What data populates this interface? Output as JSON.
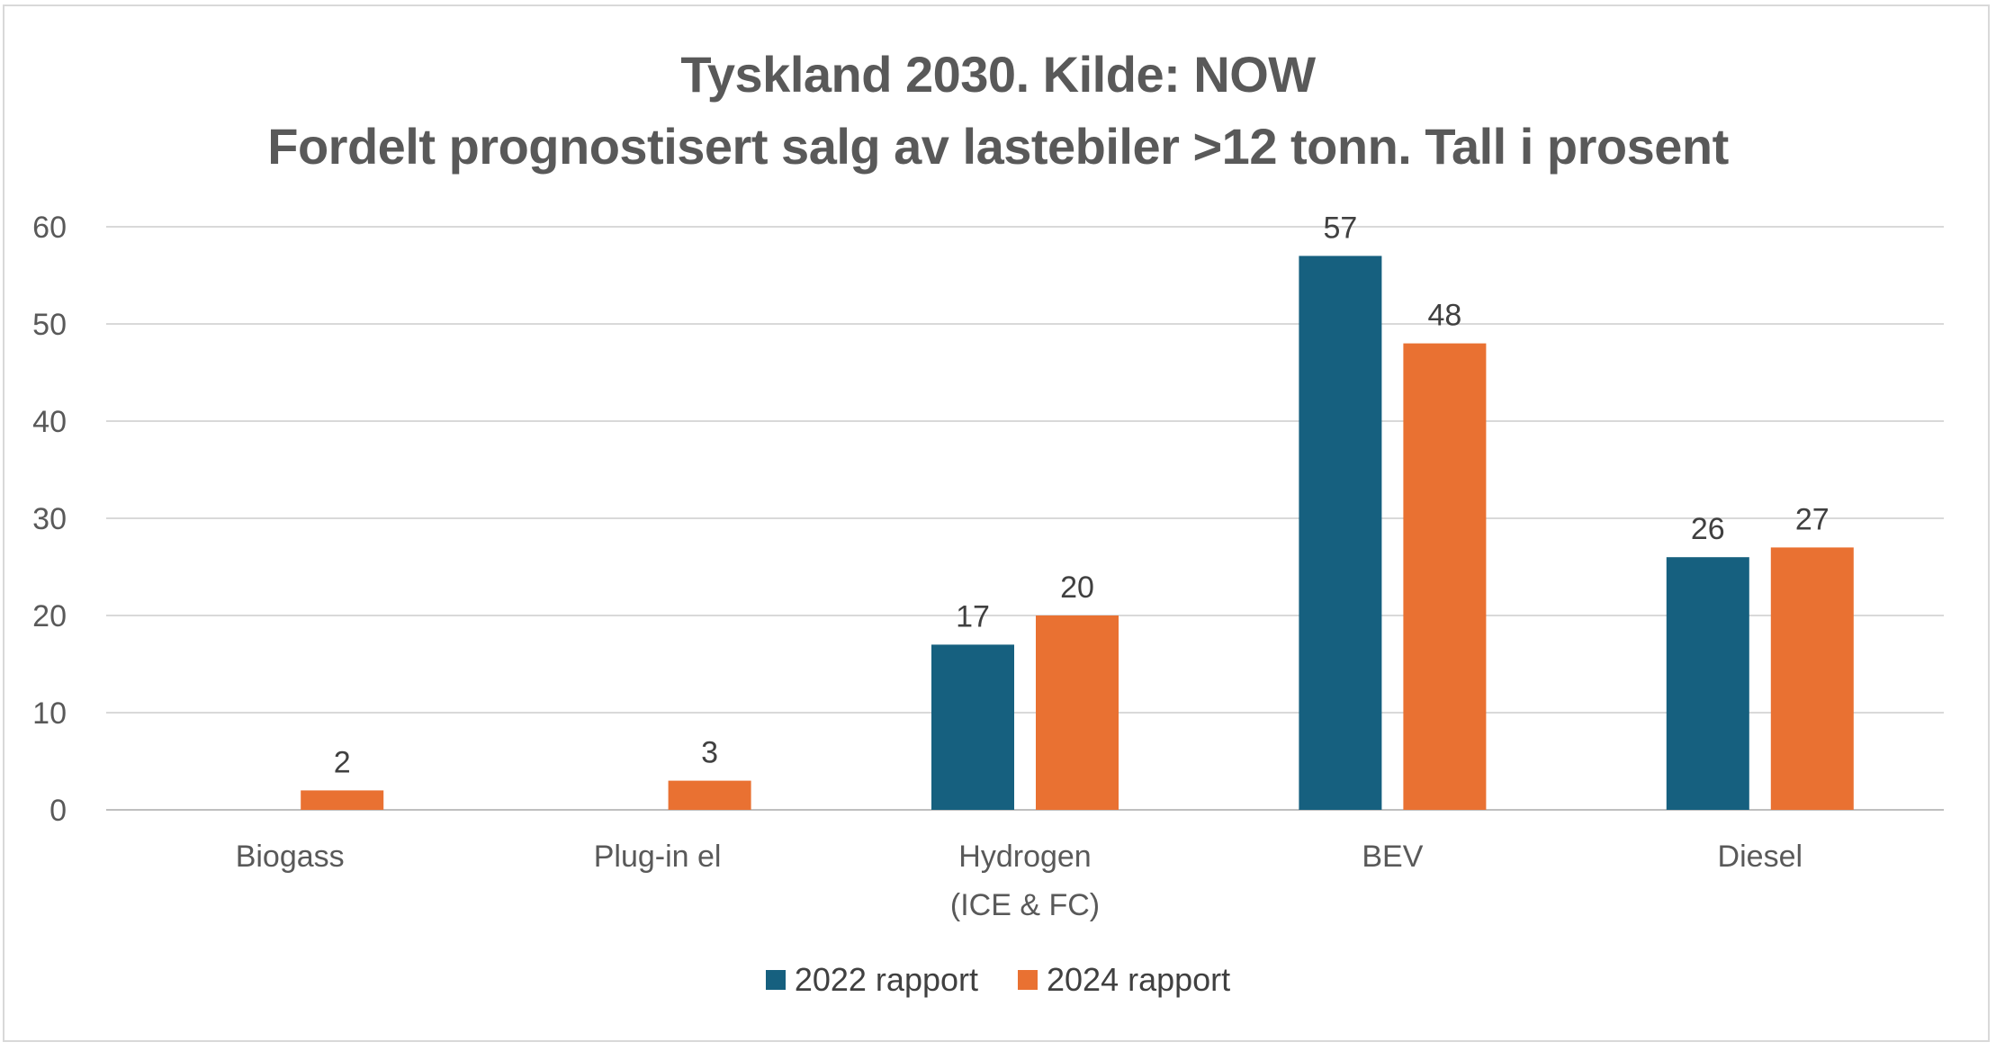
{
  "chart_data": {
    "type": "bar",
    "title_lines": [
      "Tyskland 2030. Kilde: NOW",
      "Fordelt prognostisert salg av lastebiler >12 tonn. Tall i prosent"
    ],
    "categories": [
      [
        "Biogass"
      ],
      [
        "Plug-in el"
      ],
      [
        "Hydrogen",
        "(ICE & FC)"
      ],
      [
        "BEV"
      ],
      [
        "Diesel"
      ]
    ],
    "series": [
      {
        "name": "2022 rapport",
        "color": "#16607f",
        "values": [
          null,
          null,
          17,
          57,
          26
        ]
      },
      {
        "name": "2024 rapport",
        "color": "#e97132",
        "values": [
          2,
          3,
          20,
          48,
          27
        ]
      }
    ],
    "ylim": [
      0,
      60
    ],
    "yticks": [
      "0",
      "10",
      "20",
      "30",
      "40",
      "50",
      "60"
    ],
    "grid": true,
    "legend_position": "bottom"
  }
}
